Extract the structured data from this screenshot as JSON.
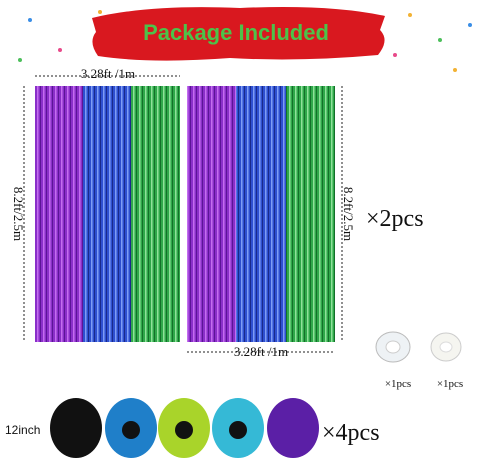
{
  "header": {
    "title": "Package Included"
  },
  "curtains": {
    "width_top": "3.28ft /1m",
    "height_left": "8.2ft/2.5m",
    "height_right": "8.2ft/2.5m",
    "width_bottom": "3.28ft /1m",
    "quantity": "×2pcs"
  },
  "accessories": [
    {
      "quantity": "×1pcs"
    },
    {
      "quantity": "×1pcs"
    }
  ],
  "balloons": {
    "size": "12inch",
    "quantity": "×4pcs"
  }
}
